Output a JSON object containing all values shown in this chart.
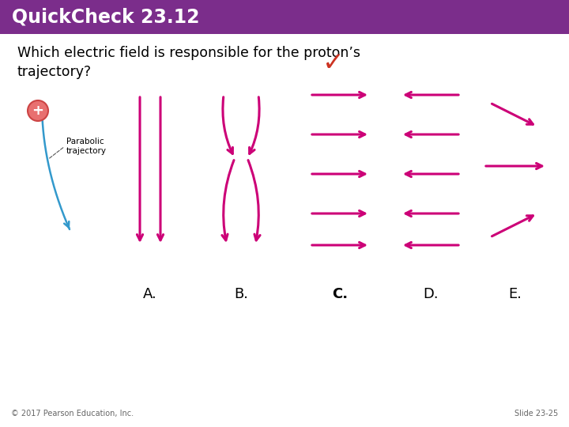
{
  "title": "QuickCheck 23.12",
  "title_bg": "#7B2D8B",
  "title_fg": "#FFFFFF",
  "question": "Which electric field is responsible for the proton’s\ntrajectory?",
  "arrow_color": "#CC0077",
  "checkmark_color": "#CC3322",
  "proton_fill": "#E87070",
  "proton_edge": "#CC4444",
  "traj_color": "#3399CC",
  "label_color": "#000000",
  "footer_left": "© 2017 Pearson Education, Inc.",
  "footer_right": "Slide 23-25",
  "labels": [
    "A.",
    "B.",
    "C.",
    "D.",
    "E."
  ],
  "fig_w": 7.2,
  "fig_h": 5.4,
  "dpi": 100
}
